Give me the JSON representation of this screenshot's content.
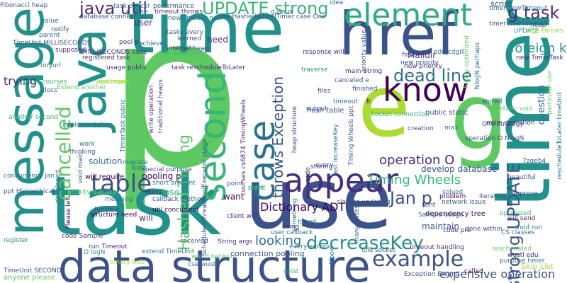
{
  "words": [
    {
      "t": "p",
      "c": "#5ec962"
    },
    {
      "t": "use",
      "c": "#3b528b"
    },
    {
      "t": "task",
      "c": "#21918c"
    },
    {
      "t": "timer",
      "c": "#21918c"
    },
    {
      "t": "time",
      "c": "#21918c"
    },
    {
      "t": "java",
      "c": "#21918c"
    },
    {
      "t": "message",
      "c": "#21918c"
    },
    {
      "t": "href",
      "c": "#3b528b"
    },
    {
      "t": "data structure",
      "c": "#3b528b"
    },
    {
      "t": "e",
      "c": "#aadc32"
    },
    {
      "t": "g",
      "c": "#5ec962"
    },
    {
      "t": "know",
      "c": "#440154"
    },
    {
      "t": "element",
      "c": "#28ae80"
    },
    {
      "t": "appear",
      "c": "#472d7b"
    },
    {
      "t": "second",
      "c": "#35b779"
    },
    {
      "t": "case",
      "c": "#2c728e"
    },
    {
      "t": "cancelled",
      "c": "#5ec962"
    },
    {
      "t": "table",
      "c": "#3b528b"
    },
    {
      "t": "example",
      "c": "#3b528b"
    },
    {
      "t": "decreaseKey",
      "c": "#21918c"
    },
    {
      "t": "UPDATE strong",
      "c": "#35b779"
    },
    {
      "t": "java util",
      "c": "#472d7b"
    },
    {
      "t": "g task",
      "c": "#472d7b"
    },
    {
      "t": "dead line",
      "c": "#2c728e"
    },
    {
      "t": "Timing Wheels",
      "c": "#35b779"
    },
    {
      "t": "Jan p",
      "c": "#3b528b"
    },
    {
      "t": "throws Exception",
      "c": "#3b528b"
    },
    {
      "t": "Hashed Timing",
      "c": "#5ec962"
    },
    {
      "t": "strong UPDATE",
      "c": "#3b528b"
    },
    {
      "t": "foreign key",
      "c": "#21918c"
    },
    {
      "t": "looking",
      "c": "#2c728e"
    },
    {
      "t": "operation O",
      "c": "#472d7b"
    },
    {
      "t": "expensive operation",
      "c": "#3b528b"
    },
    {
      "t": "Dictionary ADT",
      "c": "#440154"
    },
    {
      "t": "trying",
      "c": "#472d7b"
    },
    {
      "t": "connection pooling",
      "c": "#3b528b"
    },
    {
      "t": "script",
      "c": "#3b528b"
    },
    {
      "t": "question",
      "c": "#2c728e"
    },
    {
      "t": "pooling p",
      "c": "#440154"
    },
    {
      "t": "need",
      "c": "#472d7b"
    },
    {
      "t": "user",
      "c": "#472d7b"
    },
    {
      "t": "solution",
      "c": "#2c728e"
    },
    {
      "t": "maintain",
      "c": "#3b528b"
    },
    {
      "t": "want",
      "c": "#440154"
    },
    {
      "t": "will",
      "c": "#472d7b"
    },
    {
      "t": "close",
      "c": "#35b779"
    },
    {
      "t": "Skip List",
      "c": "#a0da39"
    },
    {
      "t": "database connection",
      "c": "#3b528b"
    },
    {
      "t": "TimeUnit MILLISECONDS",
      "c": "#3b528b"
    },
    {
      "t": "MILLISECONDS code",
      "c": "#472d7b"
    },
    {
      "t": "registered task",
      "c": "#472d7b"
    },
    {
      "t": "pool p",
      "c": "#472d7b"
    },
    {
      "t": "will require",
      "c": "#440154"
    },
    {
      "t": "concurrency Jan",
      "c": "#2c728e"
    },
    {
      "t": "ppt Hierarchical",
      "c": "#3b528b"
    },
    {
      "t": "another second",
      "c": "#35b779"
    },
    {
      "t": "implementation",
      "c": "#2c728e"
    },
    {
      "t": "cdgill courses",
      "c": "#35b779"
    },
    {
      "t": "structure need",
      "c": "#440154"
    },
    {
      "t": "client will",
      "c": "#472d7b"
    },
    {
      "t": "every second",
      "c": "#2c728e"
    },
    {
      "t": "dependency tree",
      "c": "#440154"
    },
    {
      "t": "Maildir",
      "c": "#472d7b"
    },
    {
      "t": "main String",
      "c": "#472d7b"
    },
    {
      "t": "hash table",
      "c": "#3b528b"
    },
    {
      "t": "public static",
      "c": "#3b528b"
    },
    {
      "t": "new priority",
      "c": "#472d7b"
    },
    {
      "t": "first",
      "c": "#3b528b"
    },
    {
      "t": "timer newTimeout",
      "c": "#2c728e"
    },
    {
      "t": "task cancel",
      "c": "#2c728e"
    },
    {
      "t": "performance",
      "c": "#3b528b"
    },
    {
      "t": "timeout throws",
      "c": "#472d7b"
    },
    {
      "t": "case One",
      "c": "#3b528b"
    },
    {
      "t": "usage public",
      "c": "#472d7b"
    },
    {
      "t": "task rescheduleToLater",
      "c": "#472d7b"
    },
    {
      "t": "traverse",
      "c": "#21918c"
    },
    {
      "t": "canceled e",
      "c": "#3b528b"
    },
    {
      "t": "One strategy",
      "c": "#3b528b"
    },
    {
      "t": "main operation",
      "c": "#472d7b"
    },
    {
      "t": "operation O NlogN",
      "c": "#3b528b"
    },
    {
      "t": "UPDATE",
      "c": "#21918c"
    },
    {
      "t": "tasks every",
      "c": "#3b528b"
    },
    {
      "t": "learned",
      "c": "#3b528b"
    },
    {
      "t": "response will",
      "c": "#472d7b"
    },
    {
      "t": "Fibonacci heap",
      "c": "#3b528b"
    },
    {
      "t": "solved",
      "c": "#2c728e"
    },
    {
      "t": "problem",
      "c": "#440154"
    },
    {
      "t": "network issue",
      "c": "#3b528b"
    },
    {
      "t": "code pre",
      "c": "#472d7b"
    },
    {
      "t": "done within",
      "c": "#3b528b"
    },
    {
      "t": "CS classes",
      "c": "#2c728e"
    },
    {
      "t": "will send",
      "c": "#472d7b"
    },
    {
      "t": "improve",
      "c": "#3b528b"
    },
    {
      "t": "beautiful",
      "c": "#3b528b"
    },
    {
      "t": "Sample usage",
      "c": "#2c728e"
    },
    {
      "t": "classes updating",
      "c": "#3b528b"
    },
    {
      "t": "sent",
      "c": "#472d7b"
    },
    {
      "t": "iterating",
      "c": "#3b528b"
    },
    {
      "t": "void run",
      "c": "#2c728e"
    },
    {
      "t": "optimized",
      "c": "#35b779"
    },
    {
      "t": "rescheduled",
      "c": "#5ec962"
    },
    {
      "t": "wustl edu",
      "c": "#472d7b"
    },
    {
      "t": "purpose timer",
      "c": "#2c728e"
    },
    {
      "t": "called",
      "c": "#440154"
    },
    {
      "t": "Exception Extend",
      "c": "#3b528b"
    },
    {
      "t": "exist",
      "c": "#35b779"
    },
    {
      "t": "idle socket",
      "c": "#2c728e"
    },
    {
      "t": "timeout handling",
      "c": "#472d7b"
    },
    {
      "t": "cse wustl",
      "c": "#2c728e"
    },
    {
      "t": "extend TimeUnit",
      "c": "#2c728e"
    },
    {
      "t": "run Timeout",
      "c": "#472d7b"
    },
    {
      "t": "weird network",
      "c": "#5ec962"
    },
    {
      "t": "binary tree",
      "c": "#a0da39"
    },
    {
      "t": "code Sample",
      "c": "#472d7b"
    },
    {
      "t": "register",
      "c": "#21918c"
    },
    {
      "t": "anyone please",
      "c": "#5ec962"
    },
    {
      "t": "TimeUnit SECOND",
      "c": "#3b528b"
    },
    {
      "t": "O logN",
      "c": "#21918c"
    },
    {
      "t": "String args",
      "c": "#472d7b"
    },
    {
      "t": "received",
      "c": "#3b528b"
    },
    {
      "t": "special purpose",
      "c": "#3b528b"
    },
    {
      "t": "short amount",
      "c": "#2c728e"
    },
    {
      "t": "priority queues",
      "c": "#5ec962"
    },
    {
      "t": "callback method",
      "c": "#3b528b"
    },
    {
      "t": "util concurrent",
      "c": "#440154"
    },
    {
      "t": "future e",
      "c": "#3b528b"
    },
    {
      "t": "point",
      "c": "#3b528b"
    },
    {
      "t": "user callback",
      "c": "#2c728e"
    },
    {
      "t": "using",
      "c": "#472d7b"
    },
    {
      "t": "timed",
      "c": "#2c728e"
    },
    {
      "t": "every",
      "c": "#472d7b"
    },
    {
      "t": "output",
      "c": "#3b528b"
    },
    {
      "t": "timeout",
      "c": "#2c728e"
    },
    {
      "t": "stored",
      "c": "#3b528b"
    },
    {
      "t": "creation",
      "c": "#3b528b"
    },
    {
      "t": "max",
      "c": "#2c728e"
    },
    {
      "t": "files",
      "c": "#3b528b"
    },
    {
      "t": "finished",
      "c": "#3b528b"
    },
    {
      "t": "lt",
      "c": "#440154"
    },
    {
      "t": "idea",
      "c": "#2c728e"
    },
    {
      "t": "void main",
      "c": "#a0da39"
    },
    {
      "t": "static void",
      "c": "#5ec962"
    },
    {
      "t": "heap",
      "c": "#2c728e"
    },
    {
      "t": "args throws",
      "c": "#a0da39"
    },
    {
      "t": "edu cdgill",
      "c": "#2c728e"
    },
    {
      "t": "new TimerTask",
      "c": "#472d7b"
    },
    {
      "t": "pre code",
      "c": "#3b528b"
    },
    {
      "t": "many cases",
      "c": "#3b528b"
    },
    {
      "t": "Mbox",
      "c": "#2c728e"
    },
    {
      "t": "traditional heaps",
      "c": "#3b528b"
    },
    {
      "t": "write operation",
      "c": "#472d7b"
    },
    {
      "t": "TimerTask public",
      "c": "#2c728e"
    },
    {
      "t": "void main",
      "c": "#3b528b"
    },
    {
      "t": "developed",
      "c": "#2c728e"
    },
    {
      "t": "thinking",
      "c": "#3b528b"
    },
    {
      "t": "work",
      "c": "#2c728e"
    },
    {
      "t": "migrate",
      "c": "#2c728e"
    },
    {
      "t": "least",
      "c": "#2c728e"
    },
    {
      "t": "Please let",
      "c": "#440154"
    },
    {
      "t": "meaning",
      "c": "#2c728e"
    },
    {
      "t": "mess",
      "c": "#472d7b"
    },
    {
      "t": "re inserting",
      "c": "#35b779"
    },
    {
      "t": "tinyurl",
      "c": "#2c728e"
    },
    {
      "t": "supposed",
      "c": "#472d7b"
    },
    {
      "t": "value",
      "c": "#2c728e"
    },
    {
      "t": "parent",
      "c": "#2c728e"
    },
    {
      "t": "notify",
      "c": "#3b528b"
    },
    {
      "t": "docs",
      "c": "#2c728e"
    },
    {
      "t": "achieved",
      "c": "#2c728e"
    },
    {
      "t": "Timing Wheels ppt",
      "c": "#3b528b"
    },
    {
      "t": "develop database",
      "c": "#3b528b"
    },
    {
      "t": "g raise",
      "c": "#2c728e"
    },
    {
      "t": "g issue",
      "c": "#2c728e"
    },
    {
      "t": "new HashedWheelTimer",
      "c": "#3b528b"
    },
    {
      "t": "heap structure",
      "c": "#3b528b"
    },
    {
      "t": "Socket connection",
      "c": "#35b779"
    },
    {
      "t": "ScheduledThreadPoolExecutor purge",
      "c": "#3b528b"
    },
    {
      "t": "courses cs6874 TimingWheels",
      "c": "#472d7b"
    },
    {
      "t": "rescheduleToLater timeUnit",
      "c": "#2c728e"
    },
    {
      "t": "priority value",
      "c": "#3b528b"
    },
    {
      "t": "highly optimized",
      "c": "#5ec962"
    },
    {
      "t": "NlogN perhaps",
      "c": "#2c728e"
    },
    {
      "t": "Extend another",
      "c": "#5ec962"
    },
    {
      "t": "void main",
      "c": "#a0da39"
    },
    {
      "t": "newTimeout new",
      "c": "#2c728e"
    },
    {
      "t": "internal heap",
      "c": "#472d7b"
    },
    {
      "t": "timer newTimeout",
      "c": "#3b528b"
    },
    {
      "t": "something",
      "c": "#2c728e"
    },
    {
      "t": "storing",
      "c": "#3b528b"
    },
    {
      "t": "fast increaseKey",
      "c": "#2c728e"
    },
    {
      "t": "point",
      "c": "#35b779"
    },
    {
      "t": "client",
      "c": "#35b779"
    },
    {
      "t": "7zgeb4",
      "c": "#3b528b"
    },
    {
      "t": "particular use",
      "c": "#5ec962"
    },
    {
      "t": "new priority",
      "c": "#3b528b"
    }
  ]
}
